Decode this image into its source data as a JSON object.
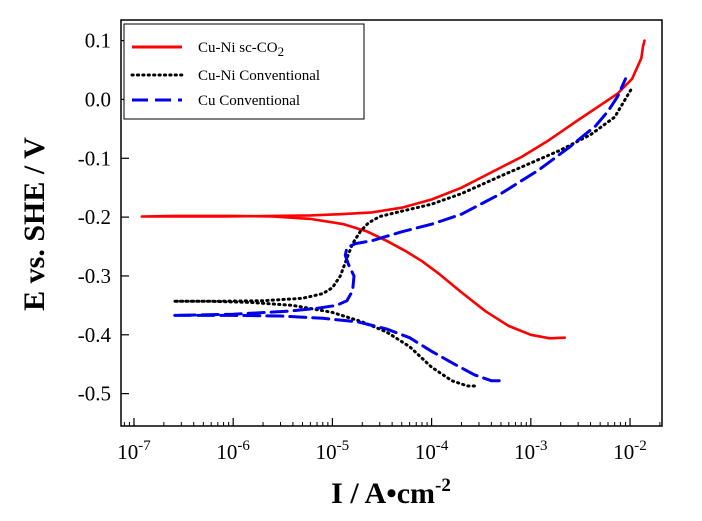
{
  "chart_data": {
    "type": "line",
    "title": "",
    "xlabel_base": "I / A•cm",
    "xlabel_exp": "-2",
    "ylabel": "E vs. SHE / V",
    "x_scale": "log",
    "xlim": [
      7.4e-08,
      0.021
    ],
    "ylim": [
      -0.555,
      0.135
    ],
    "x_ticks": [
      {
        "value": 1e-07,
        "base": "10",
        "exp": "-7"
      },
      {
        "value": 1e-06,
        "base": "10",
        "exp": "-6"
      },
      {
        "value": 1e-05,
        "base": "10",
        "exp": "-5"
      },
      {
        "value": 0.0001,
        "base": "10",
        "exp": "-4"
      },
      {
        "value": 0.001,
        "base": "10",
        "exp": "-3"
      },
      {
        "value": 0.01,
        "base": "10",
        "exp": "-2"
      }
    ],
    "y_ticks": [
      {
        "value": 0.1,
        "label": "0.1"
      },
      {
        "value": 0.0,
        "label": "0.0"
      },
      {
        "value": -0.1,
        "label": "-0.1"
      },
      {
        "value": -0.2,
        "label": "-0.2"
      },
      {
        "value": -0.3,
        "label": "-0.3"
      },
      {
        "value": -0.4,
        "label": "-0.4"
      },
      {
        "value": -0.5,
        "label": "-0.5"
      }
    ],
    "grid": false,
    "legend_position": "top-left",
    "series": [
      {
        "name": "Cu-Ni sc-CO",
        "name_sub": "2",
        "color": "#ff0000",
        "style": "solid",
        "x": [
          0.0022,
          0.00155,
          0.001,
          0.0006,
          0.00035,
          0.0002,
          0.00012,
          8e-05,
          5.5e-05,
          3.5e-05,
          2.2e-05,
          1.3e-05,
          6e-06,
          2.5e-06,
          1e-06,
          5e-07,
          2.5e-07,
          1.2e-07,
          2.5e-07,
          8e-07,
          2.5e-06,
          6e-06,
          1.2e-05,
          2.5e-05,
          5e-05,
          0.0001,
          0.0002,
          0.0004,
          0.0008,
          0.0015,
          0.003,
          0.005,
          0.0075,
          0.0105,
          0.013,
          0.0135,
          0.014
        ],
        "y": [
          -0.405,
          -0.406,
          -0.4,
          -0.385,
          -0.36,
          -0.328,
          -0.297,
          -0.275,
          -0.258,
          -0.24,
          -0.224,
          -0.212,
          -0.203,
          -0.199,
          -0.198,
          -0.198,
          -0.198,
          -0.199,
          -0.199,
          -0.199,
          -0.198,
          -0.197,
          -0.195,
          -0.192,
          -0.184,
          -0.17,
          -0.15,
          -0.124,
          -0.098,
          -0.07,
          -0.035,
          -0.01,
          0.01,
          0.035,
          0.07,
          0.09,
          0.1
        ]
      },
      {
        "name": "Cu-Ni Conventional",
        "color": "#000000",
        "style": "dotted",
        "x": [
          0.00027,
          0.00023,
          0.00016,
          0.0001,
          6e-05,
          3.5e-05,
          2e-05,
          1e-05,
          4e-06,
          1.5e-06,
          6e-07,
          2.5e-07,
          6e-07,
          2e-06,
          5e-06,
          8e-06,
          1e-05,
          1.2e-05,
          1.4e-05,
          1.6e-05,
          1.9e-05,
          2.3e-05,
          3e-05,
          5e-05,
          0.0001,
          0.0002,
          0.0005,
          0.001,
          0.002,
          0.004,
          0.007,
          0.0105
        ],
        "y": [
          -0.487,
          -0.487,
          -0.478,
          -0.455,
          -0.42,
          -0.395,
          -0.378,
          -0.362,
          -0.35,
          -0.345,
          -0.343,
          -0.343,
          -0.343,
          -0.342,
          -0.338,
          -0.33,
          -0.32,
          -0.3,
          -0.27,
          -0.245,
          -0.225,
          -0.21,
          -0.199,
          -0.19,
          -0.178,
          -0.16,
          -0.13,
          -0.108,
          -0.086,
          -0.06,
          -0.03,
          0.02
        ]
      },
      {
        "name": "Cu Conventional",
        "color": "#0000ee",
        "style": "dashed",
        "x": [
          0.00048,
          0.0004,
          0.00027,
          0.00017,
          0.0001,
          6e-05,
          3.5e-05,
          1.8e-05,
          8e-06,
          3e-06,
          1e-06,
          2.5e-07,
          1e-06,
          3.5e-06,
          7e-06,
          1.1e-05,
          1.4e-05,
          1.6e-05,
          1.65e-05,
          1.45e-05,
          1.35e-05,
          1.4e-05,
          1.7e-05,
          2.5e-05,
          5e-05,
          0.0001,
          0.0002,
          0.0005,
          0.0012,
          0.0025,
          0.0045,
          0.006,
          0.0075,
          0.009
        ],
        "y": [
          -0.478,
          -0.478,
          -0.468,
          -0.45,
          -0.428,
          -0.405,
          -0.39,
          -0.378,
          -0.372,
          -0.368,
          -0.367,
          -0.367,
          -0.365,
          -0.36,
          -0.355,
          -0.35,
          -0.342,
          -0.325,
          -0.3,
          -0.28,
          -0.265,
          -0.252,
          -0.245,
          -0.24,
          -0.225,
          -0.212,
          -0.195,
          -0.16,
          -0.12,
          -0.08,
          -0.045,
          -0.02,
          0.005,
          0.035
        ]
      }
    ]
  }
}
